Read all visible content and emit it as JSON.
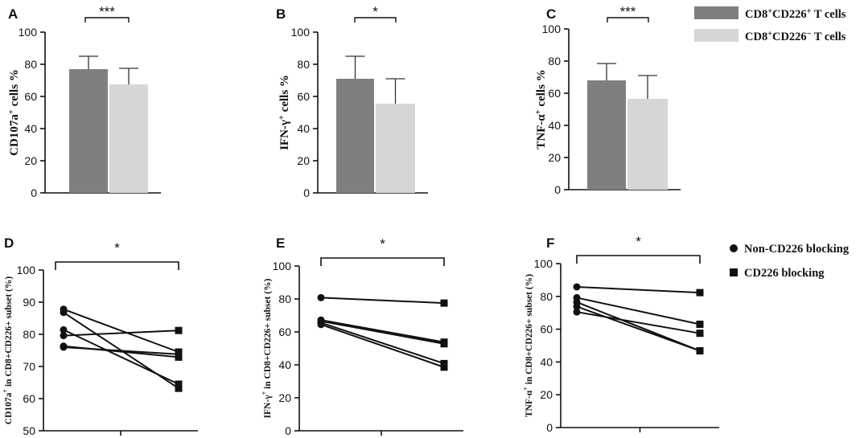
{
  "chart_data": [
    {
      "panel": "A",
      "type": "bar",
      "ylabel_main": "CD107a",
      "ylabel_sup": "+",
      "ylabel_rest": " cells %",
      "ylim": [
        0,
        100
      ],
      "yticks": [
        "0",
        "20",
        "40",
        "60",
        "80",
        "100"
      ],
      "series": [
        {
          "name": "CD8+CD226+ T cells",
          "value": 77,
          "error": 8
        },
        {
          "name": "CD8+CD226- T cells",
          "value": 67.5,
          "error": 10
        }
      ],
      "significance": "***"
    },
    {
      "panel": "B",
      "type": "bar",
      "ylabel_main": "IFN-γ",
      "ylabel_sup": "+",
      "ylabel_rest": " cells %",
      "ylim": [
        0,
        100
      ],
      "yticks": [
        "0",
        "20",
        "40",
        "60",
        "80",
        "100"
      ],
      "series": [
        {
          "name": "CD8+CD226+ T cells",
          "value": 71,
          "error": 14
        },
        {
          "name": "CD8+CD226- T cells",
          "value": 55.5,
          "error": 15.5
        }
      ],
      "significance": "*"
    },
    {
      "panel": "C",
      "type": "bar",
      "ylabel_main": "TNF-α",
      "ylabel_sup": "+",
      "ylabel_rest": " cells %",
      "ylim": [
        0,
        100
      ],
      "yticks": [
        "0",
        "20",
        "40",
        "60",
        "80",
        "100"
      ],
      "series": [
        {
          "name": "CD8+CD226+ T cells",
          "value": 68,
          "error": 10.5
        },
        {
          "name": "CD8+CD226- T cells",
          "value": 56.5,
          "error": 14.5
        }
      ],
      "significance": "***"
    },
    {
      "panel": "D",
      "type": "line",
      "ylabel_main": "CD107a",
      "ylabel_sup": "+",
      "ylabel_rest": " in CD8+CD226+ subset (%)",
      "ylim": [
        50,
        100
      ],
      "yticks": [
        "50",
        "60",
        "70",
        "80",
        "90",
        "100"
      ],
      "pairs": [
        [
          87.8,
          74.5
        ],
        [
          86.8,
          63.2
        ],
        [
          81.4,
          64.5
        ],
        [
          79.6,
          81.2
        ],
        [
          76.3,
          72.9
        ],
        [
          76.0,
          73.8
        ]
      ],
      "significance": "*"
    },
    {
      "panel": "E",
      "type": "line",
      "ylabel_main": "IFN-γ",
      "ylabel_sup": "+",
      "ylabel_rest": " in CD8+CD226+ subset (%)",
      "ylim": [
        0,
        100
      ],
      "yticks": [
        "0",
        "20",
        "40",
        "60",
        "80",
        "100"
      ],
      "pairs": [
        [
          80.8,
          77.5
        ],
        [
          67.2,
          53.8
        ],
        [
          66.5,
          52.8
        ],
        [
          65.6,
          40.8
        ],
        [
          64.5,
          38.6
        ]
      ],
      "significance": "*"
    },
    {
      "panel": "F",
      "type": "line",
      "ylabel_main": "TNF-α",
      "ylabel_sup": "+",
      "ylabel_rest": " in CD8+CD226+ subset (%)",
      "ylim": [
        0,
        100
      ],
      "yticks": [
        "0",
        "20",
        "40",
        "60",
        "80",
        "100"
      ],
      "pairs": [
        [
          85.8,
          82.3
        ],
        [
          79.2,
          63.0
        ],
        [
          76.5,
          46.8
        ],
        [
          73.8,
          46.8
        ],
        [
          70.5,
          57.5
        ]
      ],
      "significance": "*"
    }
  ],
  "legend_bars": [
    {
      "main": "CD8",
      "sup1": "+",
      "mid": "CD226",
      "sup2": "+",
      "end": " T cells",
      "color": "#7f7f7f"
    },
    {
      "main": "CD8",
      "sup1": "+",
      "mid": "CD226",
      "sup2": "−",
      "end": " T cells",
      "color": "#d6d6d6"
    }
  ],
  "legend_lines": [
    {
      "label": "Non-CD226 blocking",
      "marker": "circle"
    },
    {
      "label": "CD226 blocking",
      "marker": "square"
    }
  ],
  "colors": {
    "bar_dark": "#7f7f7f",
    "bar_light": "#d6d6d6",
    "ink": "#111111"
  }
}
